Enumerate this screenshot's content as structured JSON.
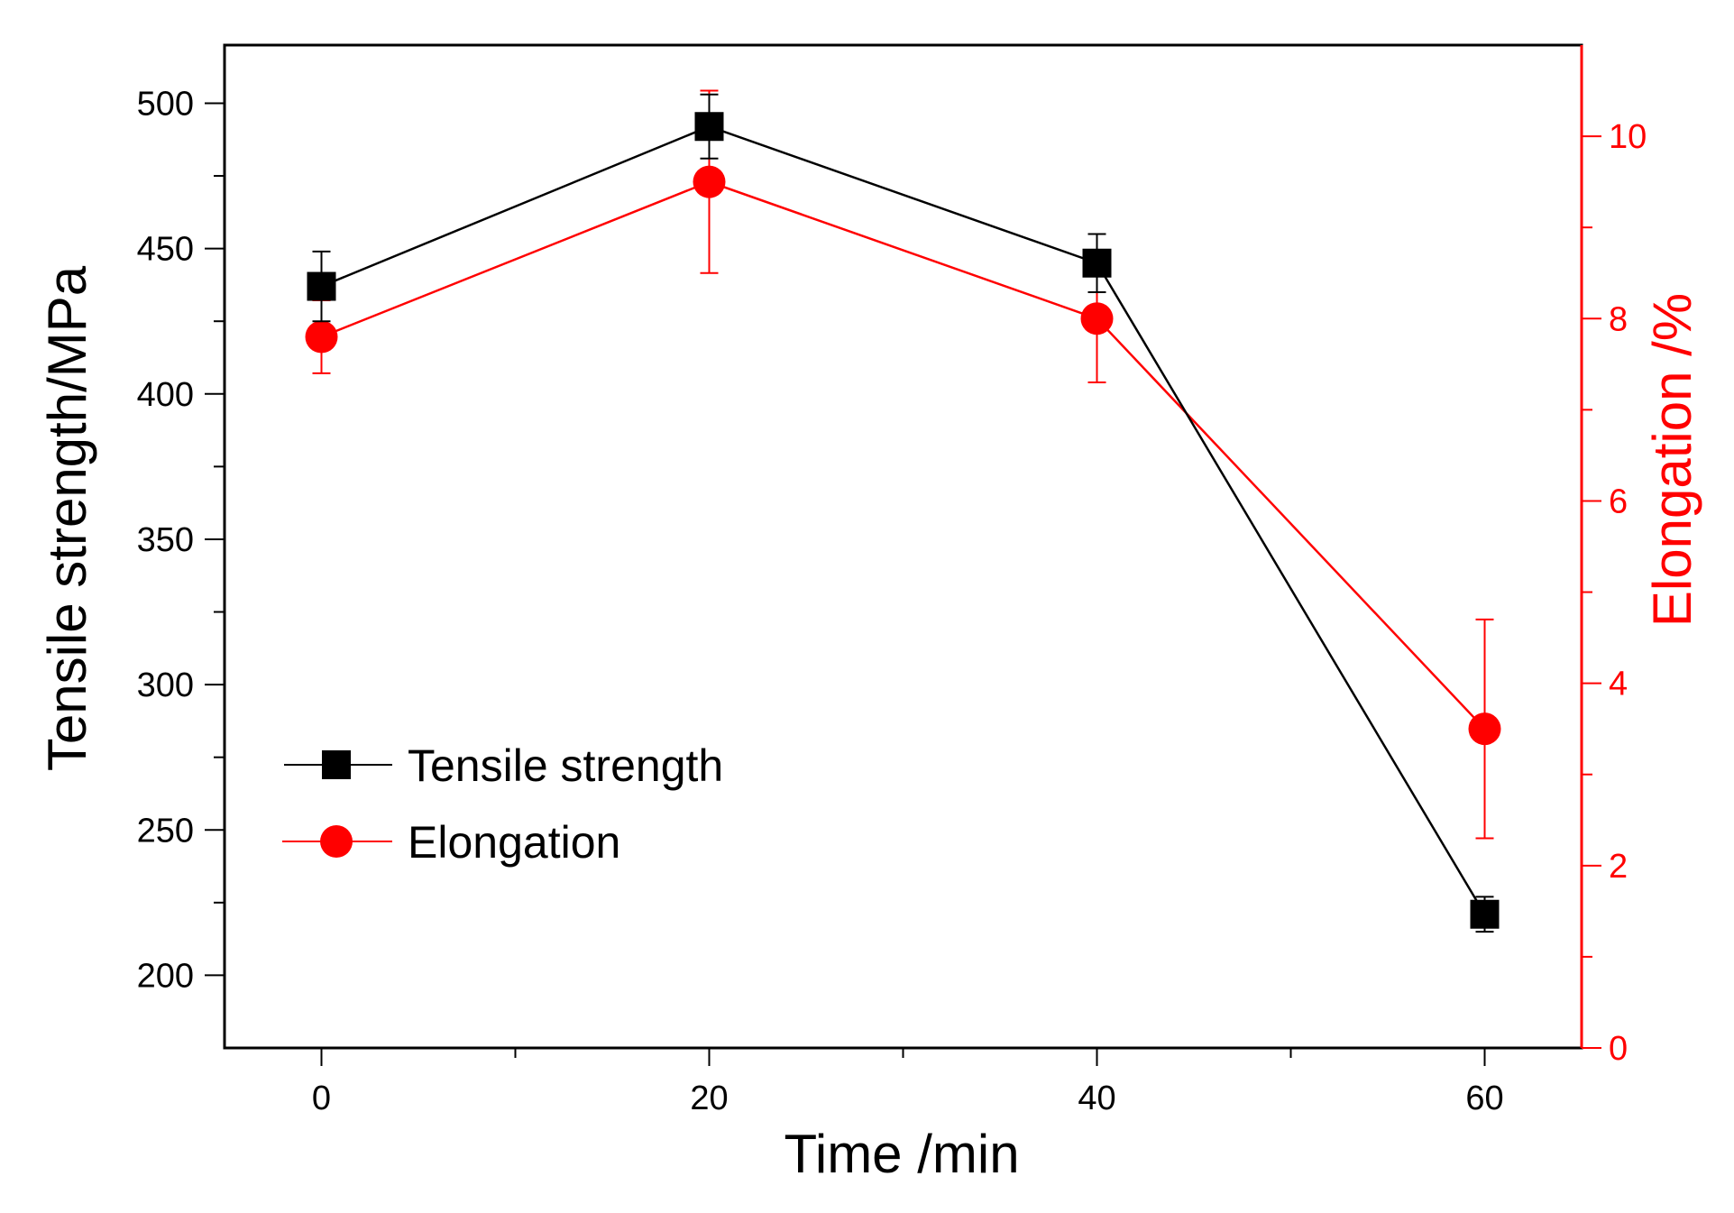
{
  "chart_data": {
    "type": "line",
    "title": "",
    "xlabel": "Time /min",
    "ylabel": "Tensile strength/MPa",
    "y2label": "Elongation /%",
    "x": [
      0,
      20,
      40,
      60
    ],
    "xlim": [
      -5,
      65
    ],
    "xticks": [
      0,
      20,
      40,
      60
    ],
    "xticks_minor": [
      10,
      30,
      50
    ],
    "ylim": [
      175,
      520
    ],
    "yticks": [
      200,
      250,
      300,
      350,
      400,
      450,
      500
    ],
    "y2lim": [
      0,
      11
    ],
    "y2ticks": [
      0,
      2,
      4,
      6,
      8,
      10
    ],
    "legend_position": "lower-left",
    "series": [
      {
        "name": "Tensile strength",
        "axis": "left",
        "color": "#000000",
        "marker": "square",
        "values": [
          437,
          492,
          445,
          221
        ],
        "errors": [
          12,
          11,
          10,
          6
        ]
      },
      {
        "name": "Elongation",
        "axis": "right",
        "color": "#ff0000",
        "marker": "circle",
        "values": [
          7.8,
          9.5,
          8.0,
          3.5
        ],
        "errors": [
          0.4,
          1.0,
          0.7,
          1.2
        ]
      }
    ]
  }
}
